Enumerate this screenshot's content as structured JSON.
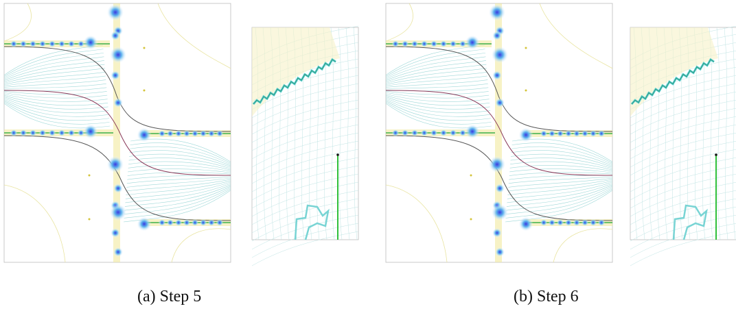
{
  "figures": [
    {
      "caption": "(a) Step 5"
    },
    {
      "caption": "(b) Step 6"
    }
  ]
}
